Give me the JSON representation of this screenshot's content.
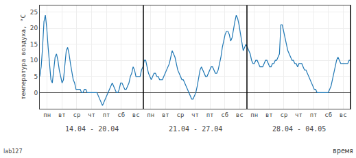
{
  "chart_data": {
    "type": "line",
    "ylabel": "температура воздуха, °С",
    "xlabel": "время",
    "watermark": "lab127",
    "xlim": [
      0,
      21
    ],
    "ylim": [
      -5,
      27
    ],
    "yticks": [
      0,
      5,
      10,
      15,
      20,
      25
    ],
    "xticks": [
      {
        "value": 0.5,
        "label": "пн"
      },
      {
        "value": 1.5,
        "label": "вт"
      },
      {
        "value": 2.5,
        "label": "ср"
      },
      {
        "value": 3.5,
        "label": "чт"
      },
      {
        "value": 4.5,
        "label": "пт"
      },
      {
        "value": 5.5,
        "label": "сб"
      },
      {
        "value": 6.5,
        "label": "вс"
      },
      {
        "value": 7.5,
        "label": "пн"
      },
      {
        "value": 8.5,
        "label": "вт"
      },
      {
        "value": 9.5,
        "label": "ср"
      },
      {
        "value": 10.5,
        "label": "чт"
      },
      {
        "value": 11.5,
        "label": "пт"
      },
      {
        "value": 12.5,
        "label": "сб"
      },
      {
        "value": 13.5,
        "label": "вс"
      },
      {
        "value": 14.5,
        "label": "пн"
      },
      {
        "value": 15.5,
        "label": "вт"
      },
      {
        "value": 16.5,
        "label": "ср"
      },
      {
        "value": 17.5,
        "label": "чт"
      },
      {
        "value": 18.5,
        "label": "пт"
      },
      {
        "value": 19.5,
        "label": "сб"
      },
      {
        "value": 20.5,
        "label": "вс"
      }
    ],
    "grid": true,
    "vertical_lines": [
      7,
      14,
      21
    ],
    "annotations": [
      {
        "text": "14.04 - 20.04",
        "x": 3.5
      },
      {
        "text": "21.04 - 27.04",
        "x": 10.5
      },
      {
        "text": "28.04 - 04.05",
        "x": 17.5
      }
    ],
    "x": [
      0,
      0.094,
      0.188,
      0.283,
      0.377,
      0.471,
      0.565,
      0.659,
      0.753,
      0.848,
      0.942,
      1.036,
      1.13,
      1.224,
      1.318,
      1.413,
      1.507,
      1.601,
      1.695,
      1.789,
      1.883,
      1.978,
      2.072,
      2.166,
      2.26,
      2.354,
      2.448,
      2.543,
      2.637,
      2.731,
      2.825,
      2.919,
      3.013,
      3.108,
      3.202,
      3.296,
      3.39,
      3.484,
      3.578,
      3.673,
      3.767,
      3.861,
      3.955,
      4.049,
      4.143,
      4.238,
      4.332,
      4.426,
      4.52,
      4.614,
      4.709,
      4.803,
      4.897,
      4.991,
      5.085,
      5.179,
      5.274,
      5.368,
      5.462,
      5.556,
      5.65,
      5.744,
      5.839,
      5.933,
      6.027,
      6.121,
      6.215,
      6.309,
      6.404,
      6.498,
      6.592,
      6.686,
      6.78,
      6.874,
      6.969,
      7.063,
      7.157,
      7.251,
      7.345,
      7.439,
      7.534,
      7.628,
      7.722,
      7.816,
      7.91,
      8.004,
      8.099,
      8.193,
      8.287,
      8.381,
      8.475,
      8.57,
      8.664,
      8.758,
      8.852,
      8.946,
      9.04,
      9.135,
      9.229,
      9.323,
      9.417,
      9.511,
      9.605,
      9.7,
      9.794,
      9.888,
      9.982,
      10.076,
      10.17,
      10.265,
      10.359,
      10.453,
      10.547,
      10.641,
      10.735,
      10.83,
      10.924,
      11.018,
      11.112,
      11.206,
      11.3,
      11.395,
      11.489,
      11.583,
      11.677,
      11.771,
      11.865,
      11.96,
      12.054,
      12.148,
      12.242,
      12.336,
      12.43,
      12.525,
      12.619,
      12.713,
      12.807,
      12.901,
      12.996,
      13.09,
      13.184,
      13.278,
      13.372,
      13.466,
      13.561,
      13.655,
      13.749,
      13.843,
      13.937,
      14.031,
      14.126,
      14.22,
      14.314,
      14.408,
      14.502,
      14.596,
      14.691,
      14.785,
      14.879,
      14.973,
      15.067,
      15.161,
      15.256,
      15.35,
      15.444,
      15.538,
      15.632,
      15.726,
      15.821,
      15.915,
      16.009,
      16.103,
      16.197,
      16.291,
      16.386,
      16.48,
      16.574,
      16.668,
      16.762,
      16.857,
      16.951,
      17.045,
      17.139,
      17.233,
      17.327,
      17.422,
      17.516,
      17.61,
      17.704,
      17.798,
      17.892,
      17.987,
      18.081,
      18.175,
      18.269,
      18.363,
      18.457,
      18.552,
      18.646,
      18.74,
      18.834,
      18.928,
      19.022,
      19.117,
      19.211,
      19.305,
      19.399,
      19.493,
      19.587,
      19.682,
      19.776,
      19.87,
      19.964,
      20.058,
      20.152,
      20.247,
      20.341,
      20.435,
      20.529,
      20.623,
      20.717,
      20.812,
      20.906,
      21
    ],
    "values": [
      5,
      8,
      14,
      22,
      24,
      20,
      14,
      9,
      4,
      3,
      7,
      11,
      12,
      10,
      7,
      5,
      3,
      4,
      9,
      13,
      14,
      12,
      9,
      6,
      4,
      3,
      1,
      1,
      1,
      1,
      0,
      0,
      1,
      1,
      0,
      0,
      0,
      0,
      0,
      0,
      0,
      0,
      -1,
      -2,
      -3,
      -4,
      -3,
      -2,
      -1,
      0,
      1,
      2,
      3,
      2,
      1,
      0,
      0,
      1,
      3,
      3,
      2,
      1,
      1,
      2,
      3,
      5,
      6,
      8,
      7,
      5,
      5,
      5,
      5,
      7,
      8,
      10,
      10,
      8,
      6,
      5,
      4,
      5,
      6,
      6,
      5,
      5,
      4,
      4,
      4,
      5,
      6,
      7,
      8,
      9,
      11,
      13,
      12,
      11,
      9,
      7,
      6,
      5,
      4,
      4,
      3,
      2,
      1,
      0,
      -1,
      -2,
      -2,
      -1,
      0,
      2,
      5,
      7,
      8,
      7,
      6,
      5,
      5,
      6,
      7,
      8,
      8,
      7,
      6,
      6,
      7,
      9,
      11,
      14,
      16,
      18,
      19,
      19,
      18,
      16,
      17,
      20,
      22,
      24,
      23,
      21,
      18,
      15,
      13,
      14,
      15,
      14,
      13,
      12,
      10,
      9,
      9,
      10,
      10,
      9,
      8,
      8,
      8,
      9,
      10,
      10,
      9,
      8,
      8,
      9,
      9,
      10,
      10,
      11,
      12,
      21,
      21,
      19,
      17,
      15,
      13,
      12,
      11,
      10,
      10,
      9,
      9,
      8,
      9,
      9,
      9,
      8,
      7,
      7,
      6,
      5,
      4,
      3,
      2,
      1,
      1,
      0,
      0,
      0,
      0,
      0,
      0,
      0,
      0,
      0,
      1,
      2,
      4,
      6,
      8,
      10,
      11,
      10,
      9,
      9,
      9,
      9,
      9,
      9,
      10,
      10
    ]
  }
}
